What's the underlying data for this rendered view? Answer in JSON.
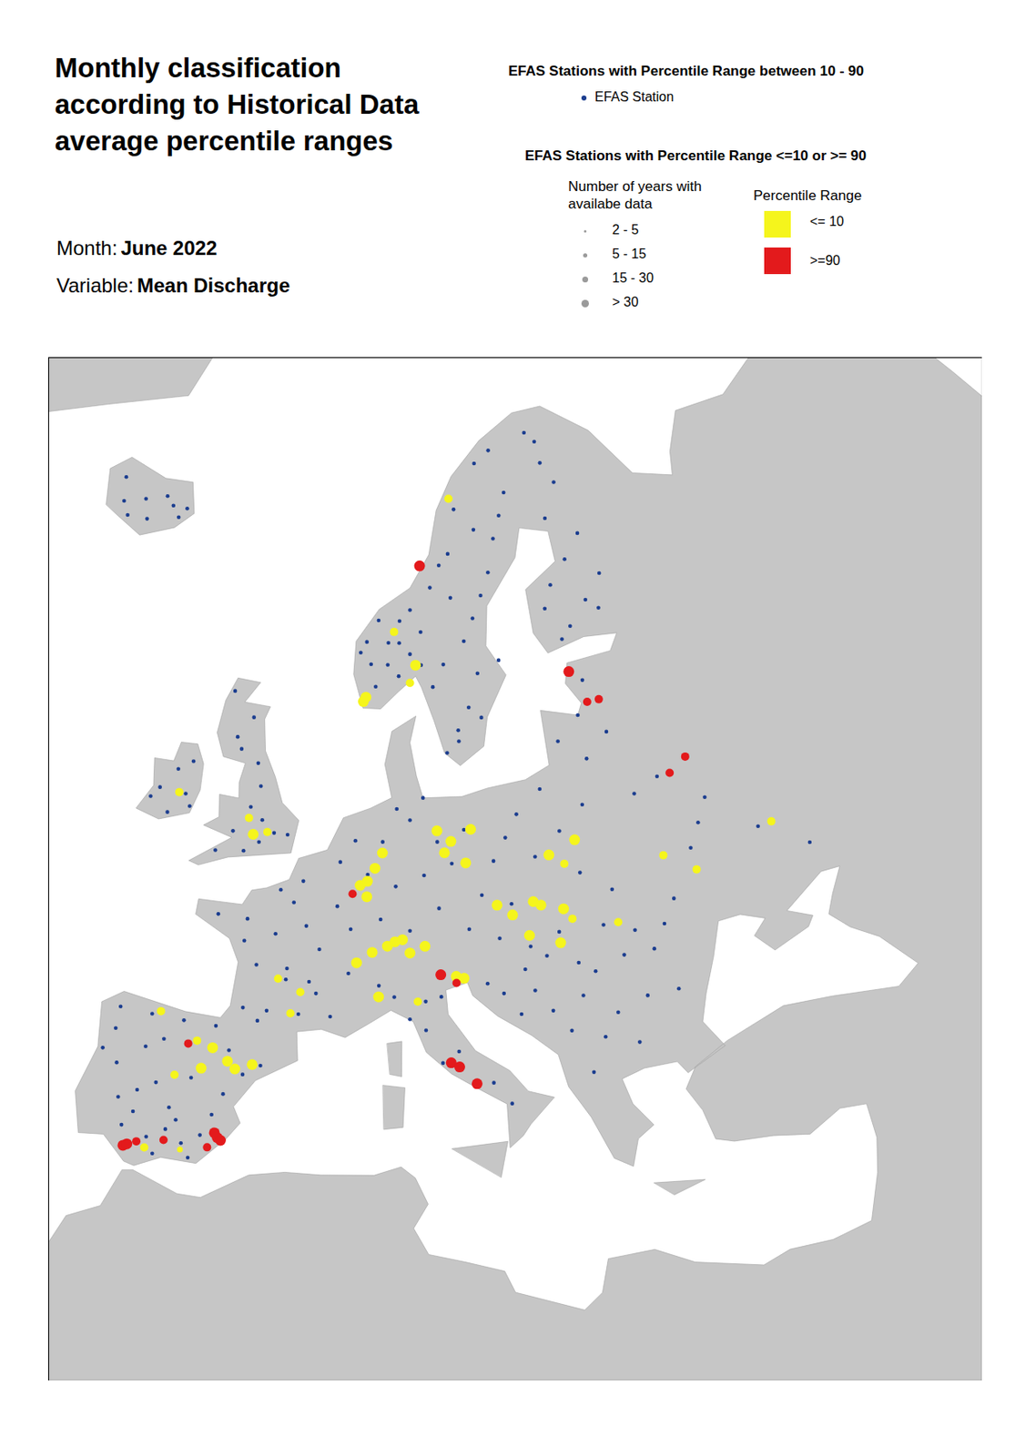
{
  "chart_data": {
    "type": "map",
    "title": "Monthly classification according to Historical Data average percentile ranges",
    "month_label": "Month:",
    "month": "June 2022",
    "variable_label": "Variable:",
    "variable": "Mean Discharge",
    "group_title_mid": "EFAS Stations with Percentile Range between 10 - 90",
    "group_title_extremes": "EFAS Stations with Percentile Range <=10 or >= 90",
    "size_title": "Number of years with availabe data",
    "size_classes": [
      "2 - 5",
      "5 - 15",
      "15 - 30",
      "> 30"
    ],
    "color_title": "Percentile Range",
    "series": [
      {
        "name": "EFAS Station",
        "color": "#1b3d8f",
        "points": [
          [
            -21,
            64.5
          ],
          [
            -19,
            65
          ],
          [
            -17,
            65.5
          ],
          [
            -15,
            64.8
          ],
          [
            -20,
            64
          ],
          [
            -18,
            64.2
          ],
          [
            -22,
            65.5
          ],
          [
            -16,
            65.2
          ],
          [
            -14.5,
            65.3
          ],
          [
            5.5,
            60.5
          ],
          [
            6,
            61
          ],
          [
            7,
            62
          ],
          [
            8,
            60
          ],
          [
            9,
            61
          ],
          [
            10,
            60.5
          ],
          [
            11,
            61.5
          ],
          [
            7,
            59
          ],
          [
            9,
            59.5
          ],
          [
            10,
            62.5
          ],
          [
            12,
            63.5
          ],
          [
            14,
            65
          ],
          [
            15,
            67
          ],
          [
            18,
            69
          ],
          [
            20,
            69.5
          ],
          [
            25,
            70
          ],
          [
            8,
            61
          ],
          [
            6.5,
            60
          ],
          [
            9,
            62
          ],
          [
            11,
            60
          ],
          [
            10,
            59.2
          ],
          [
            13,
            56
          ],
          [
            14,
            57
          ],
          [
            15,
            58
          ],
          [
            16,
            59.5
          ],
          [
            13,
            60
          ],
          [
            15,
            61
          ],
          [
            16,
            62
          ],
          [
            17,
            63
          ],
          [
            18,
            64
          ],
          [
            19,
            65.5
          ],
          [
            20,
            66.5
          ],
          [
            21,
            67.5
          ],
          [
            14,
            63
          ],
          [
            12,
            59
          ],
          [
            18,
            60
          ],
          [
            16,
            57.5
          ],
          [
            14,
            56.5
          ],
          [
            13,
            64.5
          ],
          [
            17,
            66
          ],
          [
            25,
            61
          ],
          [
            27,
            62
          ],
          [
            24,
            63
          ],
          [
            26,
            64
          ],
          [
            28,
            65
          ],
          [
            25,
            66
          ],
          [
            27,
            67.5
          ],
          [
            26,
            68.5
          ],
          [
            23,
            62
          ],
          [
            29,
            63
          ],
          [
            24,
            60.5
          ],
          [
            28,
            61.5
          ],
          [
            26,
            69.5
          ],
          [
            24,
            57
          ],
          [
            26,
            56
          ],
          [
            22,
            56
          ],
          [
            24,
            55
          ],
          [
            25,
            58.5
          ],
          [
            -3,
            57
          ],
          [
            -4,
            56
          ],
          [
            -2,
            55
          ],
          [
            -1.5,
            54
          ],
          [
            -2,
            53
          ],
          [
            -1,
            52.5
          ],
          [
            0,
            52
          ],
          [
            -3,
            51.8
          ],
          [
            -4,
            50.8
          ],
          [
            -2,
            51
          ],
          [
            1,
            52
          ],
          [
            -5,
            58
          ],
          [
            -3.5,
            55.5
          ],
          [
            -1,
            51.5
          ],
          [
            -8,
            54
          ],
          [
            -7,
            53
          ],
          [
            -9,
            53
          ],
          [
            -8,
            52
          ],
          [
            -6.5,
            52.5
          ],
          [
            -7,
            54.5
          ],
          [
            -9.5,
            52.5
          ],
          [
            2,
            49
          ],
          [
            3,
            48
          ],
          [
            1,
            47.5
          ],
          [
            4,
            47
          ],
          [
            -1,
            48
          ],
          [
            -3,
            48
          ],
          [
            0,
            46
          ],
          [
            2,
            46
          ],
          [
            4,
            45
          ],
          [
            1,
            44
          ],
          [
            -0.5,
            44
          ],
          [
            3,
            44
          ],
          [
            5,
            44
          ],
          [
            6,
            46
          ],
          [
            6,
            48
          ],
          [
            2.5,
            50
          ],
          [
            5,
            49
          ],
          [
            -1,
            47
          ],
          [
            1,
            49.5
          ],
          [
            3.5,
            45.5
          ],
          [
            0.5,
            43.5
          ],
          [
            2,
            45.5
          ],
          [
            5,
            51
          ],
          [
            6,
            52
          ],
          [
            8,
            52
          ],
          [
            10,
            53
          ],
          [
            12,
            52
          ],
          [
            13,
            51
          ],
          [
            9,
            50
          ],
          [
            11,
            50.5
          ],
          [
            7,
            50.5
          ],
          [
            8,
            48.5
          ],
          [
            10,
            48
          ],
          [
            12,
            49
          ],
          [
            14,
            52.5
          ],
          [
            9,
            53.5
          ],
          [
            11,
            54
          ],
          [
            17,
            52
          ],
          [
            19,
            51
          ],
          [
            21,
            52
          ],
          [
            22,
            50
          ],
          [
            18,
            53
          ],
          [
            20,
            54
          ],
          [
            16,
            51
          ],
          [
            23,
            53
          ],
          [
            15,
            49.5
          ],
          [
            17,
            49
          ],
          [
            14,
            48
          ],
          [
            16,
            47.5
          ],
          [
            18,
            47
          ],
          [
            19,
            46.5
          ],
          [
            20,
            47.5
          ],
          [
            21,
            46
          ],
          [
            17.5,
            46
          ],
          [
            15,
            45.5
          ],
          [
            16,
            45
          ],
          [
            18,
            45
          ],
          [
            19,
            44
          ],
          [
            20,
            43
          ],
          [
            21,
            44.5
          ],
          [
            22,
            42.5
          ],
          [
            17,
            44
          ],
          [
            23,
            43.5
          ],
          [
            25,
            44
          ],
          [
            27,
            44
          ],
          [
            24,
            42
          ],
          [
            21,
            41
          ],
          [
            22,
            45.5
          ],
          [
            26,
            46
          ],
          [
            27,
            53
          ],
          [
            29,
            53.5
          ],
          [
            32,
            52
          ],
          [
            30,
            50
          ],
          [
            35,
            50
          ],
          [
            28,
            48
          ],
          [
            31,
            51
          ],
          [
            24,
            49
          ],
          [
            38,
            48.5
          ],
          [
            24,
            46
          ],
          [
            25,
            47
          ],
          [
            27,
            47
          ],
          [
            23,
            47.5
          ],
          [
            9,
            45
          ],
          [
            11,
            44.8
          ],
          [
            12,
            45
          ],
          [
            10,
            44
          ],
          [
            11,
            43.5
          ],
          [
            12,
            42
          ],
          [
            13,
            42.5
          ],
          [
            15,
            41
          ],
          [
            16,
            40
          ],
          [
            8,
            45.5
          ],
          [
            -8,
            43
          ],
          [
            -6,
            43
          ],
          [
            -4,
            43
          ],
          [
            -2,
            43
          ],
          [
            -8,
            42
          ],
          [
            -6,
            41.5
          ],
          [
            -5,
            40
          ],
          [
            -4,
            39
          ],
          [
            -6,
            38.5
          ],
          [
            -4,
            38
          ],
          [
            -2,
            38
          ],
          [
            -3,
            37.5
          ],
          [
            -5,
            37.5
          ],
          [
            -7,
            39
          ],
          [
            -3,
            40.5
          ],
          [
            -1,
            40
          ],
          [
            0,
            41
          ],
          [
            1,
            41.5
          ],
          [
            -1,
            42
          ],
          [
            -6.5,
            37.8
          ],
          [
            -5,
            42
          ],
          [
            -7.5,
            40.5
          ],
          [
            -1.5,
            39
          ],
          [
            -2.5,
            36.9
          ],
          [
            -4.5,
            36.8
          ],
          [
            -6,
            39.5
          ],
          [
            -8.5,
            41
          ],
          [
            -3.5,
            38.5
          ]
        ]
      },
      {
        "name": "<= 10",
        "color": "#f5f51c",
        "points": [
          [
            14.5,
            67.5,
            "15 - 30"
          ],
          [
            8.5,
            61.5,
            "15 - 30"
          ],
          [
            10.5,
            60,
            "> 30"
          ],
          [
            10,
            59.2,
            "15 - 30"
          ],
          [
            6,
            58.3,
            "> 30"
          ],
          [
            6.2,
            58.5,
            "> 30"
          ],
          [
            -7.5,
            53,
            "15 - 30"
          ],
          [
            -2,
            52.5,
            "15 - 30"
          ],
          [
            -1.5,
            51.8,
            "> 30"
          ],
          [
            -0.5,
            52,
            "15 - 30"
          ],
          [
            6.5,
            50,
            "> 30"
          ],
          [
            7,
            49.5,
            "> 30"
          ],
          [
            7.5,
            50.8,
            "> 30"
          ],
          [
            8,
            51.5,
            "> 30"
          ],
          [
            7,
            50.2,
            "> 30"
          ],
          [
            12,
            52.5,
            "> 30"
          ],
          [
            13,
            52,
            "> 30"
          ],
          [
            14.5,
            52.5,
            "> 30"
          ],
          [
            14,
            51,
            "> 30"
          ],
          [
            12.5,
            51.5,
            "> 30"
          ],
          [
            20,
            51,
            "> 30"
          ],
          [
            21,
            50.5,
            "15 - 30"
          ],
          [
            22,
            51.5,
            "> 30"
          ],
          [
            16,
            49,
            "> 30"
          ],
          [
            17,
            48.5,
            "> 30"
          ],
          [
            18.5,
            49,
            "> 30"
          ],
          [
            19,
            48.8,
            "> 30"
          ],
          [
            20.5,
            48.5,
            "> 30"
          ],
          [
            21,
            48,
            "15 - 30"
          ],
          [
            7.5,
            47,
            "> 30"
          ],
          [
            8.5,
            47.3,
            "> 30"
          ],
          [
            9,
            47.5,
            "> 30"
          ],
          [
            10,
            47,
            "> 30"
          ],
          [
            6.5,
            46.5,
            "> 30"
          ],
          [
            9.5,
            47.6,
            "> 30"
          ],
          [
            11,
            47.3,
            "> 30"
          ],
          [
            13,
            45.9,
            "> 30"
          ],
          [
            13.5,
            45.8,
            "> 30"
          ],
          [
            24,
            47.5,
            "15 - 30"
          ],
          [
            8,
            45,
            "> 30"
          ],
          [
            10.5,
            44.8,
            "15 - 30"
          ],
          [
            2.5,
            44,
            "15 - 30"
          ],
          [
            1.5,
            45.5,
            "15 - 30"
          ],
          [
            3,
            45,
            "15 - 30"
          ],
          [
            -2,
            42,
            "> 30"
          ],
          [
            -1,
            41.5,
            "> 30"
          ],
          [
            -0.5,
            41.2,
            "> 30"
          ],
          [
            0.5,
            41.5,
            "> 30"
          ],
          [
            -3,
            42.2,
            "15 - 30"
          ],
          [
            -2.5,
            41,
            "> 30"
          ],
          [
            -5.5,
            43.2,
            "15 - 30"
          ],
          [
            -4,
            40.5,
            "15 - 30"
          ],
          [
            -5,
            37,
            "15 - 30"
          ],
          [
            -3,
            37.2,
            "5 - 15"
          ],
          [
            28,
            50,
            "15 - 30"
          ],
          [
            30,
            49,
            "15 - 30"
          ],
          [
            36,
            50,
            "15 - 30"
          ],
          [
            20,
            47,
            "> 30"
          ],
          [
            18,
            47.5,
            "> 30"
          ]
        ]
      },
      {
        "name": ">=90",
        "color": "#e31a1c",
        "points": [
          [
            11,
            64.5,
            "> 30"
          ],
          [
            24,
            59,
            "> 30"
          ],
          [
            25,
            57.5,
            "15 - 30"
          ],
          [
            26,
            57.5,
            "15 - 30"
          ],
          [
            30,
            53.5,
            "15 - 30"
          ],
          [
            31.5,
            54,
            "15 - 30"
          ],
          [
            6,
            49.6,
            "15 - 30"
          ],
          [
            12,
            46,
            "> 30"
          ],
          [
            13,
            45.6,
            "15 - 30"
          ],
          [
            12.5,
            42,
            "> 30"
          ],
          [
            13,
            41.8,
            "> 30"
          ],
          [
            14,
            41,
            "> 30"
          ],
          [
            -1,
            38,
            "> 30"
          ],
          [
            -1.2,
            38.2,
            "> 30"
          ],
          [
            -0.8,
            37.9,
            "> 30"
          ],
          [
            -1.5,
            37.5,
            "15 - 30"
          ],
          [
            -6.2,
            36.9,
            "> 30"
          ],
          [
            -6,
            37,
            "> 30"
          ],
          [
            -5.5,
            37.2,
            "15 - 30"
          ],
          [
            -4,
            37.5,
            "15 - 30"
          ],
          [
            -3.5,
            42,
            "15 - 30"
          ]
        ]
      }
    ]
  }
}
